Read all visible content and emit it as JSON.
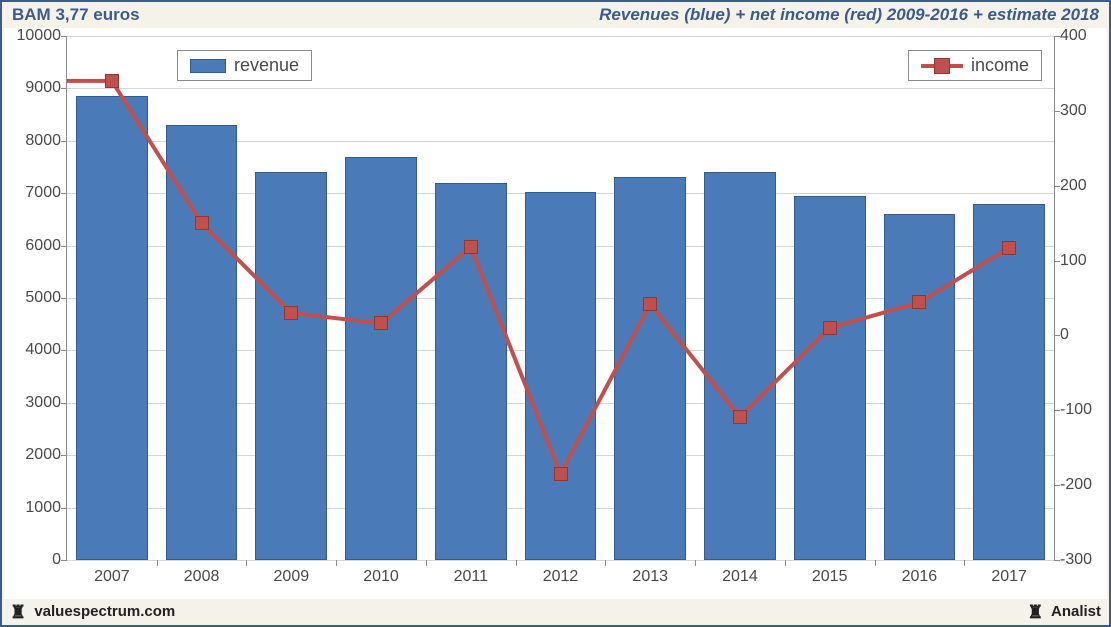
{
  "header": {
    "left": "BAM 3,77 euros",
    "right": "Revenues (blue) + net income (red) 2009-2016 + estimate 2018"
  },
  "footer": {
    "left": "valuespectrum.com",
    "right": "Analist",
    "icon_color": "#000000"
  },
  "chart": {
    "type": "bar+line-dual-axis",
    "background_color": "#ffffff",
    "outer_background_color": "#f5f2ea",
    "frame_color": "#3a5b8c",
    "axis_color": "#8a8a8a",
    "grid_color": "#d6d6d6",
    "label_color": "#4a4a4a",
    "label_fontsize": 16,
    "legend_fontsize": 18,
    "categories": [
      "2007",
      "2008",
      "2009",
      "2010",
      "2011",
      "2012",
      "2013",
      "2014",
      "2015",
      "2016",
      "2017"
    ],
    "y_left": {
      "min": 0,
      "max": 10000,
      "step": 1000
    },
    "y_right": {
      "min": -300,
      "max": 400,
      "step": 100
    },
    "bars": {
      "color": "#4a7ab8",
      "border_color": "#355a8c",
      "width_ratio": 0.8,
      "values": [
        8850,
        8300,
        7400,
        7700,
        7200,
        7020,
        7300,
        7400,
        6950,
        6600,
        6800
      ]
    },
    "line": {
      "color": "#c0504d",
      "border_color": "#8c3a38",
      "width": 4,
      "marker_size": 14,
      "start_from_edge": true,
      "start_value": 340,
      "values": [
        340,
        150,
        30,
        16,
        118,
        -185,
        42,
        -109,
        10,
        44,
        117
      ]
    },
    "legend": {
      "revenue_label": "revenue",
      "income_label": "income"
    }
  }
}
